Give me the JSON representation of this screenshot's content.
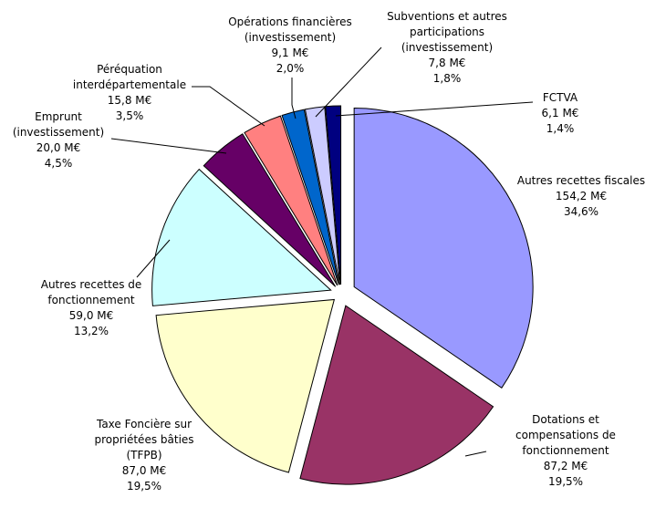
{
  "chart_data": {
    "type": "pie",
    "unit": "M€",
    "start_angle_deg": 0,
    "direction": "clockwise",
    "slices": [
      {
        "key": "autres-recettes-fiscales",
        "label_lines": [
          "Autres recettes fiscales"
        ],
        "value": 154.2,
        "value_text": "154,2 M€",
        "percent_text": "34,6%",
        "color": "#9999ff"
      },
      {
        "key": "dotations",
        "label_lines": [
          "Dotations et",
          "compensations de",
          "fonctionnement"
        ],
        "value": 87.2,
        "value_text": "87,2 M€",
        "percent_text": "19,5%",
        "color": "#993366"
      },
      {
        "key": "tfpb",
        "label_lines": [
          "Taxe Foncière sur",
          "propriétées bâties",
          "(TFPB)"
        ],
        "value": 87.0,
        "value_text": "87,0 M€",
        "percent_text": "19,5%",
        "color": "#ffffcc"
      },
      {
        "key": "autres-recettes-fonctionnement",
        "label_lines": [
          "Autres recettes de",
          "fonctionnement"
        ],
        "value": 59.0,
        "value_text": "59,0 M€",
        "percent_text": "13,2%",
        "color": "#ccffff"
      },
      {
        "key": "emprunt",
        "label_lines": [
          "Emprunt",
          "(investissement)"
        ],
        "value": 20.0,
        "value_text": "20,0 M€",
        "percent_text": "4,5%",
        "color": "#660066"
      },
      {
        "key": "perequation",
        "label_lines": [
          "Péréquation",
          "interdépartementale"
        ],
        "value": 15.8,
        "value_text": "15,8 M€",
        "percent_text": "3,5%",
        "color": "#ff8080"
      },
      {
        "key": "operations-financieres",
        "label_lines": [
          "Opérations financières",
          "(investissement)"
        ],
        "value": 9.1,
        "value_text": "9,1 M€",
        "percent_text": "2,0%",
        "color": "#0066cc"
      },
      {
        "key": "subventions",
        "label_lines": [
          "Subventions et autres",
          "participations",
          "(investissement)"
        ],
        "value": 7.8,
        "value_text": "7,8 M€",
        "percent_text": "1,8%",
        "color": "#ccccff"
      },
      {
        "key": "fctva",
        "label_lines": [
          "FCTVA"
        ],
        "value": 6.1,
        "value_text": "6,1 M€",
        "percent_text": "1,4%",
        "color": "#000080"
      }
    ]
  }
}
